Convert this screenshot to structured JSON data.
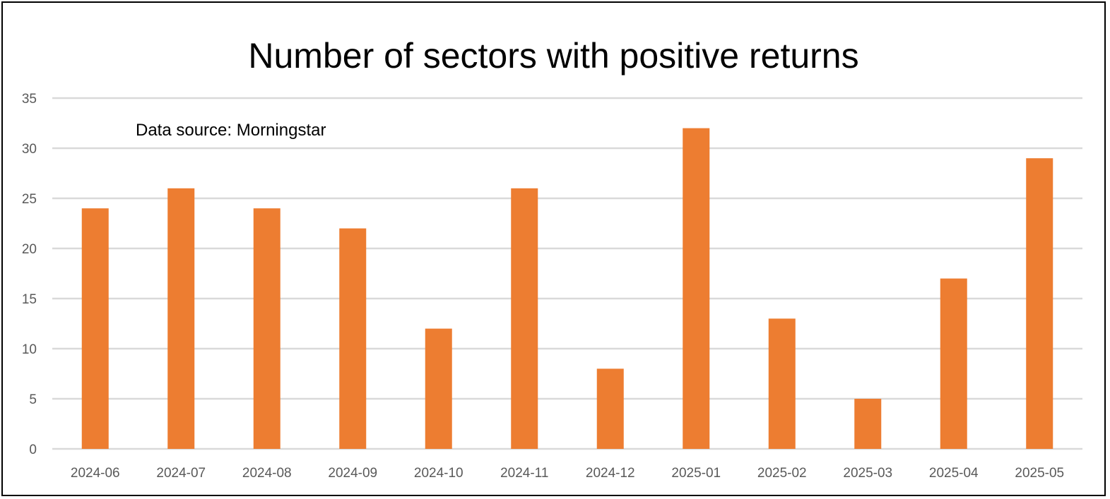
{
  "chart_data": {
    "type": "bar",
    "title": "Number of sectors with positive returns",
    "annotation": "Data source: Morningstar",
    "xlabel": "",
    "ylabel": "",
    "categories": [
      "2024-06",
      "2024-07",
      "2024-08",
      "2024-09",
      "2024-10",
      "2024-11",
      "2024-12",
      "2025-01",
      "2025-02",
      "2025-03",
      "2025-04",
      "2025-05"
    ],
    "values": [
      24,
      26,
      24,
      22,
      12,
      26,
      8,
      32,
      13,
      5,
      17,
      29
    ],
    "ylim": [
      0,
      35
    ],
    "yticks": [
      0,
      5,
      10,
      15,
      20,
      25,
      30,
      35
    ],
    "grid": true,
    "legend": "none",
    "bar_color": "#ED7D31",
    "grid_color": "#D9D9D9",
    "tick_color": "#595959"
  }
}
